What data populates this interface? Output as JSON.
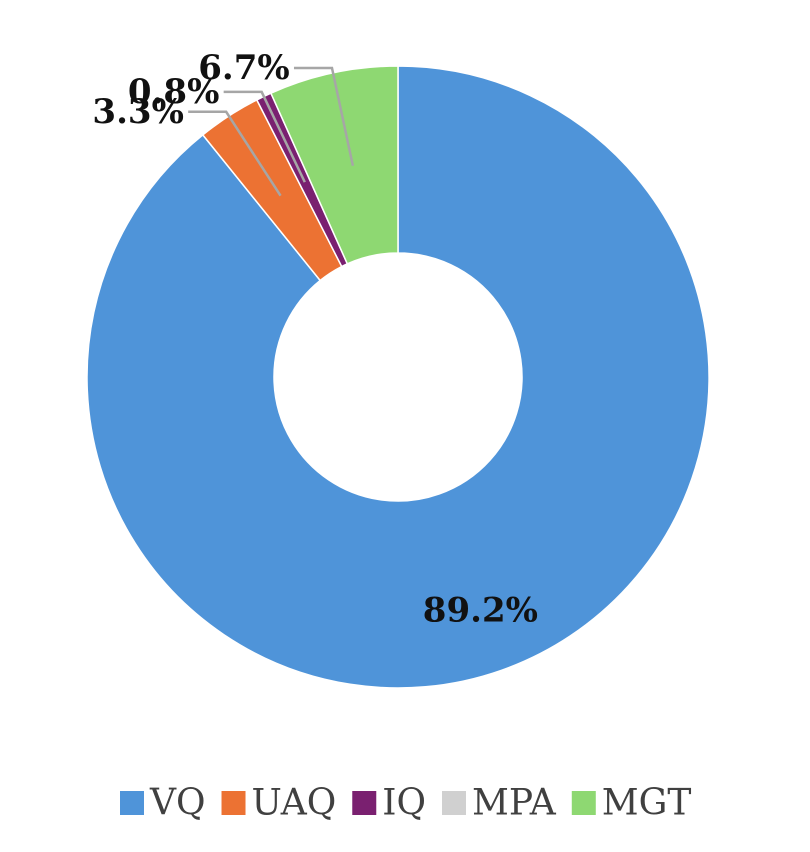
{
  "chart_data": {
    "type": "pie",
    "donut": true,
    "categories": [
      "VQ",
      "UAQ",
      "IQ",
      "MPA",
      "MGT"
    ],
    "values": [
      89.2,
      3.3,
      0.8,
      0.0,
      6.7
    ],
    "data_labels": [
      "89.2%",
      "3.3%",
      "0.8%",
      "",
      "6.7%"
    ],
    "colors": [
      "#4F94D9",
      "#EC7233",
      "#7A2070",
      "#D0D0D0",
      "#8ED872"
    ],
    "title": "",
    "legend_position": "bottom",
    "legend": [
      {
        "label": "VQ",
        "color": "#4F94D9"
      },
      {
        "label": "UAQ",
        "color": "#EC7233"
      },
      {
        "label": "IQ",
        "color": "#7A2070"
      },
      {
        "label": "MPA",
        "color": "#D0D0D0"
      },
      {
        "label": "MGT",
        "color": "#8ED872"
      }
    ],
    "leader_line_color": "#A6A6A6"
  }
}
